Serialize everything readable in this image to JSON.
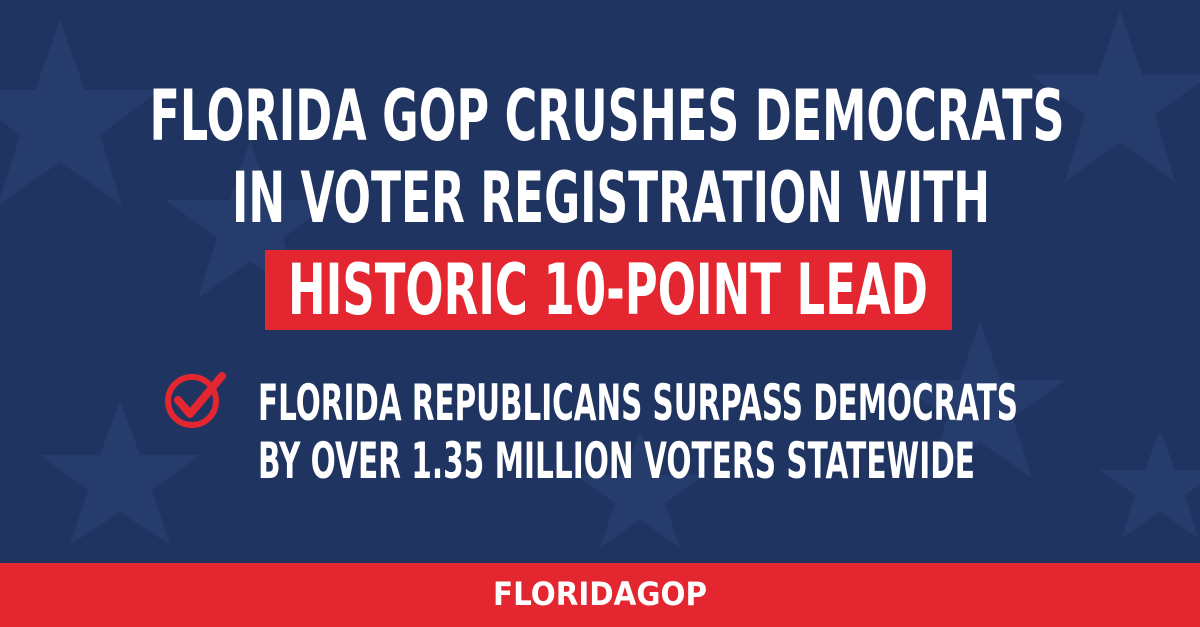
{
  "headline": {
    "lines": [
      "FLORIDA GOP CRUSHES DEMOCRATS",
      "IN VOTER REGISTRATION WITH"
    ],
    "highlight": "HISTORIC 10-POINT LEAD"
  },
  "bullet": {
    "lines": [
      "FLORIDA REPUBLICANS SURPASS DEMOCRATS",
      "BY OVER 1.35 MILLION VOTERS STATEWIDE"
    ]
  },
  "footer": {
    "logo": "FLORIDAGOP"
  }
}
